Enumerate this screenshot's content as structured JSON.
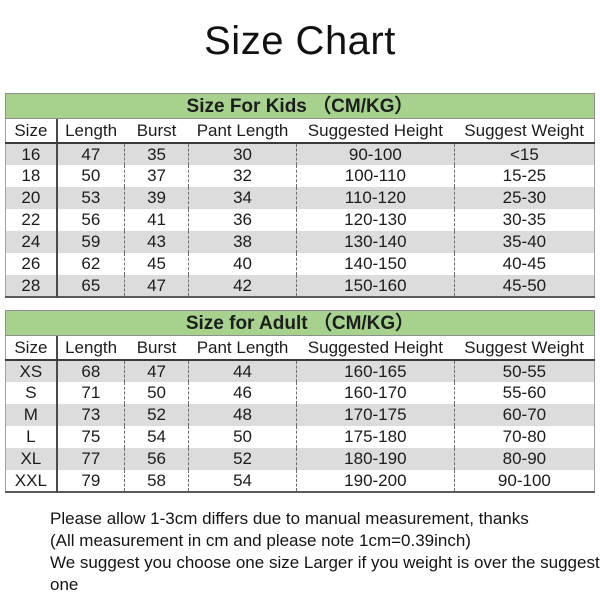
{
  "page": {
    "title": "Size Chart"
  },
  "colors": {
    "header_green": "#a6d28e",
    "row_gray": "#dcdcdc",
    "text": "#1c1c1c"
  },
  "tables": [
    {
      "section_title": "Size For Kids （CM/KG）",
      "columns": [
        "Size",
        "Length",
        "Burst",
        "Pant Length",
        "Suggested Height",
        "Suggest Weight"
      ],
      "rows": [
        [
          "16",
          "47",
          "35",
          "30",
          "90-100",
          "<15"
        ],
        [
          "18",
          "50",
          "37",
          "32",
          "100-110",
          "15-25"
        ],
        [
          "20",
          "53",
          "39",
          "34",
          "110-120",
          "25-30"
        ],
        [
          "22",
          "56",
          "41",
          "36",
          "120-130",
          "30-35"
        ],
        [
          "24",
          "59",
          "43",
          "38",
          "130-140",
          "35-40"
        ],
        [
          "26",
          "62",
          "45",
          "40",
          "140-150",
          "40-45"
        ],
        [
          "28",
          "65",
          "47",
          "42",
          "150-160",
          "45-50"
        ]
      ]
    },
    {
      "section_title": "Size for Adult （CM/KG）",
      "columns": [
        "Size",
        "Length",
        "Burst",
        "Pant Length",
        "Suggested Height",
        "Suggest Weight"
      ],
      "rows": [
        [
          "XS",
          "68",
          "47",
          "44",
          "160-165",
          "50-55"
        ],
        [
          "S",
          "71",
          "50",
          "46",
          "160-170",
          "55-60"
        ],
        [
          "M",
          "73",
          "52",
          "48",
          "170-175",
          "60-70"
        ],
        [
          "L",
          "75",
          "54",
          "50",
          "175-180",
          "70-80"
        ],
        [
          "XL",
          "77",
          "56",
          "52",
          "180-190",
          "80-90"
        ],
        [
          "XXL",
          "79",
          "58",
          "54",
          "190-200",
          "90-100"
        ]
      ]
    }
  ],
  "notes": [
    "Please allow 1-3cm differs due to manual measurement, thanks",
    "(All measurement in cm and please note 1cm=0.39inch)",
    "We suggest you choose one size Larger if you weight is over the suggest one"
  ]
}
